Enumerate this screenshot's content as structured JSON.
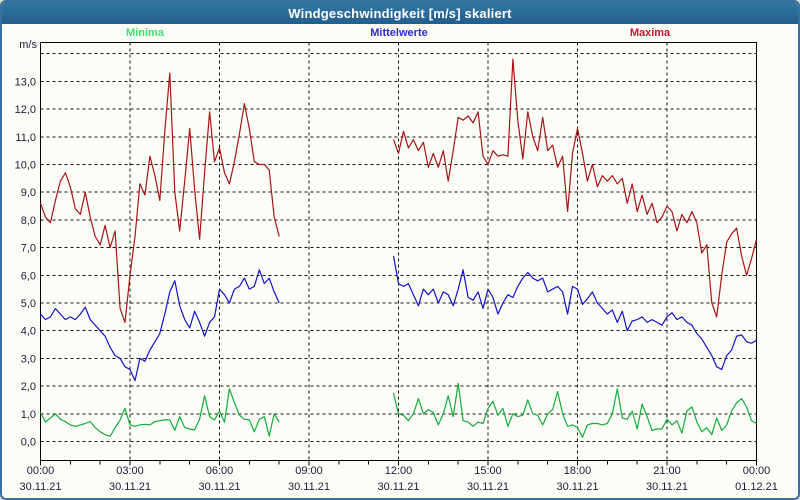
{
  "window": {
    "title": "Windgeschwindigkeit [m/s] skaliert"
  },
  "legend": [
    {
      "label": "Minima",
      "color": "#3ce06e"
    },
    {
      "label": "Mittelwerte",
      "color": "#2b2bd5"
    },
    {
      "label": "Maxima",
      "color": "#cc1133"
    }
  ],
  "chart_data": {
    "type": "line",
    "title": "Windgeschwindigkeit [m/s] skaliert",
    "xlabel": "",
    "ylabel": "m/s",
    "ylim": [
      0,
      14.4
    ],
    "grid": "dashed",
    "legend_position": "top",
    "x_range_minutes": [
      0,
      1440
    ],
    "major_tick_hours": 3,
    "minor_tick_hours": 1,
    "data_gap_minutes": [
      490,
      710
    ],
    "colors": {
      "grid": "#111111",
      "axis": "#000000",
      "tick_text": "#1b1b38"
    },
    "ytick_values": [
      0,
      1,
      2,
      3,
      4,
      5,
      6,
      7,
      8,
      9,
      10,
      11,
      12,
      13
    ],
    "ytick_labels": [
      "0,0",
      "1,0",
      "2,0",
      "3,0",
      "4,0",
      "5,0",
      "6,0",
      "7,0",
      "8,0",
      "9,0",
      "10,0",
      "11,0",
      "12,0",
      "13,0"
    ],
    "x_labels": [
      {
        "time": "00:00",
        "date": "30.11.21"
      },
      {
        "time": "03:00",
        "date": "30.11.21"
      },
      {
        "time": "06:00",
        "date": "30.11.21"
      },
      {
        "time": "09:00",
        "date": "30.11.21"
      },
      {
        "time": "12:00",
        "date": "30.11.21"
      },
      {
        "time": "15:00",
        "date": "30.11.21"
      },
      {
        "time": "18:00",
        "date": "30.11.21"
      },
      {
        "time": "21:00",
        "date": "30.11.21"
      },
      {
        "time": "00:00",
        "date": "01.12.21"
      }
    ],
    "series": [
      {
        "name": "Minima",
        "color": "#13ad3a",
        "segments": [
          {
            "start_min": 0,
            "step_min": 10,
            "values": [
              1.05,
              0.7,
              0.85,
              1.0,
              0.8,
              0.72,
              0.6,
              0.55,
              0.6,
              0.65,
              0.72,
              0.5,
              0.35,
              0.25,
              0.18,
              0.5,
              0.78,
              1.2,
              0.6,
              0.55,
              0.6,
              0.62,
              0.6,
              0.72,
              0.75,
              0.78,
              0.78,
              0.4,
              0.9,
              0.5,
              0.45,
              0.42,
              0.8,
              1.65,
              0.9,
              0.78,
              1.1,
              0.7,
              1.9,
              1.4,
              0.95,
              0.8,
              0.78,
              0.35,
              0.8,
              0.9,
              0.2,
              1.0,
              0.7
            ]
          },
          {
            "start_min": 710,
            "step_min": 10,
            "values": [
              1.75,
              1.0,
              0.95,
              0.75,
              1.0,
              1.55,
              1.0,
              1.15,
              1.05,
              0.6,
              1.0,
              1.65,
              0.9,
              2.1,
              0.75,
              0.7,
              0.55,
              0.7,
              0.65,
              1.2,
              1.45,
              0.95,
              1.2,
              0.55,
              1.0,
              0.9,
              0.95,
              1.5,
              1.0,
              0.95,
              0.6,
              1.0,
              1.15,
              1.8,
              1.0,
              0.55,
              0.6,
              0.5,
              0.15,
              0.6,
              0.65,
              0.65,
              0.6,
              0.65,
              1.0,
              1.9,
              0.85,
              0.8,
              1.1,
              0.45,
              1.35,
              0.9,
              0.4,
              0.45,
              0.45,
              0.8,
              0.6,
              0.75,
              0.3,
              1.1,
              1.25,
              0.72,
              0.35,
              0.5,
              0.25,
              0.85,
              0.4,
              0.6,
              1.1,
              1.4,
              1.55,
              1.25,
              0.75,
              0.65
            ]
          }
        ]
      },
      {
        "name": "Mittelwerte",
        "color": "#1212c8",
        "segments": [
          {
            "start_min": 0,
            "step_min": 10,
            "values": [
              4.6,
              4.4,
              4.5,
              4.8,
              4.6,
              4.4,
              4.5,
              4.4,
              4.6,
              4.85,
              4.4,
              4.2,
              4.0,
              3.8,
              3.4,
              3.1,
              3.0,
              2.7,
              2.6,
              2.2,
              3.0,
              2.9,
              3.3,
              3.6,
              3.9,
              4.6,
              5.4,
              5.8,
              4.9,
              4.4,
              4.1,
              4.7,
              4.3,
              3.8,
              4.3,
              4.5,
              5.5,
              5.3,
              5.0,
              5.5,
              5.6,
              5.9,
              5.5,
              5.6,
              6.2,
              5.7,
              5.9,
              5.4,
              5.0
            ]
          },
          {
            "start_min": 710,
            "step_min": 10,
            "values": [
              6.7,
              5.7,
              5.6,
              5.7,
              5.3,
              4.9,
              5.5,
              5.3,
              5.5,
              5.0,
              5.4,
              5.3,
              4.9,
              5.5,
              6.2,
              5.2,
              5.1,
              5.4,
              4.8,
              5.5,
              5.2,
              4.6,
              5.0,
              5.3,
              5.2,
              5.6,
              5.9,
              6.1,
              5.9,
              5.8,
              5.9,
              5.4,
              5.5,
              5.6,
              5.4,
              4.6,
              5.6,
              5.5,
              4.95,
              5.15,
              5.4,
              5.0,
              4.8,
              4.6,
              4.75,
              4.3,
              4.7,
              4.0,
              4.35,
              4.4,
              4.5,
              4.3,
              4.4,
              4.3,
              4.2,
              4.5,
              4.65,
              4.4,
              4.5,
              4.3,
              4.2,
              3.9,
              3.7,
              3.4,
              3.1,
              2.7,
              2.6,
              3.1,
              3.3,
              3.8,
              3.85,
              3.6,
              3.55,
              3.65
            ]
          }
        ]
      },
      {
        "name": "Maxima",
        "color": "#a81414",
        "segments": [
          {
            "start_min": 0,
            "step_min": 10,
            "values": [
              8.6,
              8.1,
              7.9,
              8.7,
              9.4,
              9.7,
              9.2,
              8.4,
              8.2,
              9.0,
              8.1,
              7.4,
              7.1,
              7.8,
              7.0,
              7.6,
              4.8,
              4.3,
              6.0,
              7.4,
              9.3,
              8.9,
              10.3,
              9.6,
              8.7,
              11.2,
              13.3,
              9.0,
              7.6,
              9.4,
              11.3,
              9.1,
              7.3,
              9.7,
              11.9,
              10.1,
              10.6,
              9.7,
              9.3,
              10.1,
              11.1,
              12.2,
              11.3,
              10.1,
              10.0,
              10.0,
              9.8,
              8.1,
              7.4
            ]
          },
          {
            "start_min": 710,
            "step_min": 10,
            "values": [
              10.9,
              10.4,
              11.2,
              10.6,
              10.9,
              10.5,
              10.8,
              9.9,
              10.4,
              9.9,
              10.5,
              9.4,
              10.5,
              11.7,
              11.6,
              11.75,
              11.5,
              11.9,
              10.3,
              10.0,
              10.5,
              10.3,
              10.35,
              10.3,
              13.8,
              11.6,
              10.2,
              11.9,
              11.0,
              10.5,
              11.7,
              10.5,
              10.7,
              9.9,
              10.3,
              8.3,
              10.4,
              11.3,
              10.4,
              9.4,
              10.0,
              9.2,
              9.6,
              9.4,
              9.6,
              9.3,
              9.5,
              8.6,
              9.3,
              8.3,
              8.9,
              8.2,
              8.6,
              7.9,
              8.1,
              8.5,
              8.3,
              7.6,
              8.2,
              7.9,
              8.3,
              7.9,
              6.8,
              7.1,
              5.0,
              4.5,
              6.0,
              7.2,
              7.5,
              7.7,
              6.7,
              6.0,
              6.6,
              7.3
            ]
          }
        ]
      }
    ]
  }
}
